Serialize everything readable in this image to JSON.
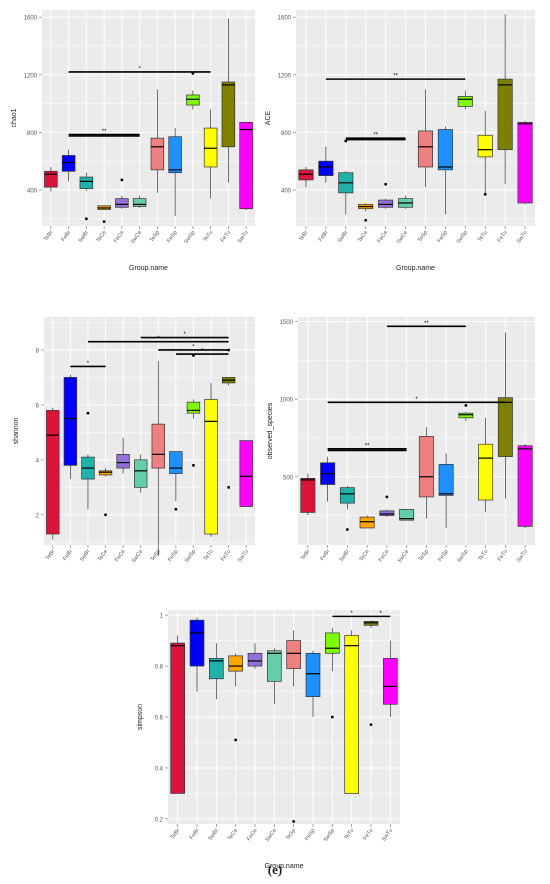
{
  "figure": {
    "caption": "(e)"
  },
  "chart_data": [
    {
      "id": "chao1",
      "type": "box",
      "ylabel": "chao1",
      "xlabel": "Group.name",
      "yticks": [
        400,
        800,
        1200,
        1600
      ],
      "ylim": [
        150,
        1650
      ],
      "categories": [
        "TeBr",
        "FeBr",
        "SwBr",
        "TeCe",
        "FeCe",
        "SwCe",
        "TeSp",
        "FeSp",
        "SwSp",
        "TeTu",
        "FeTu",
        "SwTu"
      ],
      "boxes": [
        {
          "color": "#DC143C",
          "min": 390,
          "q1": 420,
          "median": 510,
          "q3": 530,
          "max": 560,
          "outliers": []
        },
        {
          "color": "#0000FF",
          "min": 460,
          "q1": 530,
          "median": 590,
          "q3": 640,
          "max": 680,
          "outliers": []
        },
        {
          "color": "#20B2AA",
          "min": 395,
          "q1": 410,
          "median": 460,
          "q3": 490,
          "max": 520,
          "outliers": [
            200
          ]
        },
        {
          "color": "#FFA500",
          "min": 260,
          "q1": 265,
          "median": 275,
          "q3": 290,
          "max": 295,
          "outliers": [
            180
          ]
        },
        {
          "color": "#9370DB",
          "min": 270,
          "q1": 280,
          "median": 300,
          "q3": 340,
          "max": 360,
          "outliers": [
            470
          ]
        },
        {
          "color": "#66CDAA",
          "min": 275,
          "q1": 285,
          "median": 300,
          "q3": 340,
          "max": 360,
          "outliers": []
        },
        {
          "color": "#F08080",
          "min": 380,
          "q1": 540,
          "median": 700,
          "q3": 760,
          "max": 1100,
          "outliers": []
        },
        {
          "color": "#1E90FF",
          "min": 220,
          "q1": 520,
          "median": 540,
          "q3": 770,
          "max": 830,
          "outliers": []
        },
        {
          "color": "#7CFC00",
          "min": 960,
          "q1": 990,
          "median": 1030,
          "q3": 1060,
          "max": 1090,
          "outliers": [
            1210
          ]
        },
        {
          "color": "#FFFF00",
          "min": 340,
          "q1": 560,
          "median": 690,
          "q3": 830,
          "max": 960,
          "outliers": []
        },
        {
          "color": "#808000",
          "min": 450,
          "q1": 700,
          "median": 1130,
          "q3": 1150,
          "max": 1590,
          "outliers": []
        },
        {
          "color": "#FF00FF",
          "min": 260,
          "q1": 270,
          "median": 820,
          "q3": 870,
          "max": 870,
          "outliers": []
        }
      ],
      "brackets": [
        {
          "from": 1,
          "to": 9,
          "y": 1220,
          "label": "*"
        },
        {
          "from": 1,
          "to": 5,
          "y": 785,
          "label": "**"
        },
        {
          "from": 1,
          "to": 5,
          "y": 775,
          "label": ""
        }
      ]
    },
    {
      "id": "ace",
      "type": "box",
      "ylabel": "ACE",
      "xlabel": "Group.name",
      "yticks": [
        400,
        800,
        1200,
        1600
      ],
      "ylim": [
        150,
        1650
      ],
      "categories": [
        "TeBr",
        "FeBr",
        "SwBr",
        "TeCe",
        "FeCe",
        "SwCe",
        "TeSp",
        "FeSp",
        "SwSp",
        "TeTu",
        "FeTu",
        "SwTu"
      ],
      "boxes": [
        {
          "color": "#DC143C",
          "min": 420,
          "q1": 470,
          "median": 510,
          "q3": 540,
          "max": 560,
          "outliers": []
        },
        {
          "color": "#0000FF",
          "min": 450,
          "q1": 500,
          "median": 560,
          "q3": 600,
          "max": 700,
          "outliers": []
        },
        {
          "color": "#20B2AA",
          "min": 230,
          "q1": 380,
          "median": 450,
          "q3": 520,
          "max": 530,
          "outliers": [
            740
          ]
        },
        {
          "color": "#FFA500",
          "min": 250,
          "q1": 270,
          "median": 285,
          "q3": 300,
          "max": 310,
          "outliers": [
            190
          ]
        },
        {
          "color": "#9370DB",
          "min": 270,
          "q1": 280,
          "median": 300,
          "q3": 330,
          "max": 340,
          "outliers": [
            440
          ]
        },
        {
          "color": "#66CDAA",
          "min": 270,
          "q1": 280,
          "median": 310,
          "q3": 340,
          "max": 360,
          "outliers": []
        },
        {
          "color": "#F08080",
          "min": 420,
          "q1": 560,
          "median": 700,
          "q3": 810,
          "max": 1100,
          "outliers": []
        },
        {
          "color": "#1E90FF",
          "min": 230,
          "q1": 540,
          "median": 560,
          "q3": 820,
          "max": 840,
          "outliers": []
        },
        {
          "color": "#7CFC00",
          "min": 960,
          "q1": 980,
          "median": 1030,
          "q3": 1050,
          "max": 1090,
          "outliers": []
        },
        {
          "color": "#FFFF00",
          "min": 370,
          "q1": 630,
          "median": 680,
          "q3": 780,
          "max": 950,
          "outliers": [
            370
          ]
        },
        {
          "color": "#808000",
          "min": 440,
          "q1": 680,
          "median": 1130,
          "q3": 1170,
          "max": 1620,
          "outliers": []
        },
        {
          "color": "#FF00FF",
          "min": 300,
          "q1": 310,
          "median": 860,
          "q3": 870,
          "max": 880,
          "outliers": []
        }
      ],
      "brackets": [
        {
          "from": 1,
          "to": 8,
          "y": 1170,
          "label": "**"
        },
        {
          "from": 2,
          "to": 5,
          "y": 760,
          "label": "**"
        },
        {
          "from": 2,
          "to": 5,
          "y": 750,
          "label": ""
        }
      ]
    },
    {
      "id": "shannon",
      "type": "box",
      "ylabel": "shannon",
      "xlabel": "",
      "yticks": [
        2,
        4,
        6,
        8
      ],
      "ylim": [
        0.9,
        9.2
      ],
      "categories": [
        "TeBr",
        "FeBr",
        "SwBr",
        "TeCe",
        "FeCe",
        "SwCe",
        "TeSp",
        "FeSp",
        "SwSp",
        "TeTu",
        "FeTu",
        "SwTu"
      ],
      "boxes": [
        {
          "color": "#DC143C",
          "min": 1.1,
          "q1": 1.3,
          "median": 4.9,
          "q3": 5.8,
          "max": 5.9,
          "outliers": []
        },
        {
          "color": "#0000FF",
          "min": 3.3,
          "q1": 3.8,
          "median": 5.5,
          "q3": 7.0,
          "max": 7.1,
          "outliers": []
        },
        {
          "color": "#20B2AA",
          "min": 2.2,
          "q1": 3.3,
          "median": 3.7,
          "q3": 4.1,
          "max": 4.2,
          "outliers": [
            5.7
          ]
        },
        {
          "color": "#FFA500",
          "min": 3.4,
          "q1": 3.45,
          "median": 3.55,
          "q3": 3.6,
          "max": 3.7,
          "outliers": [
            2.0
          ]
        },
        {
          "color": "#9370DB",
          "min": 3.5,
          "q1": 3.7,
          "median": 3.9,
          "q3": 4.2,
          "max": 4.8,
          "outliers": []
        },
        {
          "color": "#66CDAA",
          "min": 2.8,
          "q1": 3.0,
          "median": 3.6,
          "q3": 4.0,
          "max": 4.2,
          "outliers": []
        },
        {
          "color": "#F08080",
          "min": 0.5,
          "q1": 3.7,
          "median": 4.2,
          "q3": 5.3,
          "max": 7.6,
          "outliers": []
        },
        {
          "color": "#1E90FF",
          "min": 2.5,
          "q1": 3.5,
          "median": 3.7,
          "q3": 4.3,
          "max": 4.3,
          "outliers": [
            2.2
          ]
        },
        {
          "color": "#7CFC00",
          "min": 5.5,
          "q1": 5.7,
          "median": 5.8,
          "q3": 6.1,
          "max": 6.2,
          "outliers": [
            3.8,
            7.8
          ]
        },
        {
          "color": "#FFFF00",
          "min": 1.2,
          "q1": 1.3,
          "median": 5.4,
          "q3": 6.2,
          "max": 6.8,
          "outliers": []
        },
        {
          "color": "#808000",
          "min": 6.7,
          "q1": 6.8,
          "median": 6.9,
          "q3": 7.0,
          "max": 7.0,
          "outliers": [
            3.0,
            8.0
          ]
        },
        {
          "color": "#FF00FF",
          "min": 2.3,
          "q1": 2.3,
          "median": 3.4,
          "q3": 4.7,
          "max": 4.7,
          "outliers": []
        }
      ],
      "brackets": [
        {
          "from": 1,
          "to": 3,
          "y": 7.4,
          "label": "*"
        },
        {
          "from": 2,
          "to": 10,
          "y": 8.3,
          "label": "*"
        },
        {
          "from": 5,
          "to": 10,
          "y": 8.45,
          "label": "*"
        },
        {
          "from": 6,
          "to": 10,
          "y": 8.0,
          "label": "*"
        },
        {
          "from": 7,
          "to": 10,
          "y": 7.85,
          "label": "*"
        }
      ]
    },
    {
      "id": "observed_species",
      "type": "box",
      "ylabel": "observed_species",
      "xlabel": "",
      "yticks": [
        500,
        1000,
        1500
      ],
      "ylim": [
        60,
        1530
      ],
      "categories": [
        "TeBr",
        "FeBr",
        "SwBr",
        "TeCe",
        "FeCe",
        "SwCe",
        "TeSp",
        "FeSp",
        "SwSp",
        "TeTu",
        "FeTu",
        "SwTu"
      ],
      "boxes": [
        {
          "color": "#DC143C",
          "min": 250,
          "q1": 270,
          "median": 480,
          "q3": 490,
          "max": 520,
          "outliers": []
        },
        {
          "color": "#0000FF",
          "min": 340,
          "q1": 450,
          "median": 520,
          "q3": 590,
          "max": 630,
          "outliers": []
        },
        {
          "color": "#20B2AA",
          "min": 290,
          "q1": 330,
          "median": 390,
          "q3": 430,
          "max": 440,
          "outliers": [
            160
          ]
        },
        {
          "color": "#FFA500",
          "min": 170,
          "q1": 170,
          "median": 210,
          "q3": 240,
          "max": 250,
          "outliers": []
        },
        {
          "color": "#9370DB",
          "min": 240,
          "q1": 250,
          "median": 260,
          "q3": 280,
          "max": 290,
          "outliers": [
            370
          ]
        },
        {
          "color": "#66CDAA",
          "min": 220,
          "q1": 220,
          "median": 230,
          "q3": 290,
          "max": 290,
          "outliers": []
        },
        {
          "color": "#F08080",
          "min": 230,
          "q1": 370,
          "median": 500,
          "q3": 760,
          "max": 820,
          "outliers": []
        },
        {
          "color": "#1E90FF",
          "min": 170,
          "q1": 380,
          "median": 390,
          "q3": 580,
          "max": 650,
          "outliers": []
        },
        {
          "color": "#7CFC00",
          "min": 860,
          "q1": 880,
          "median": 900,
          "q3": 910,
          "max": 920,
          "outliers": [
            960
          ]
        },
        {
          "color": "#FFFF00",
          "min": 270,
          "q1": 350,
          "median": 620,
          "q3": 710,
          "max": 880,
          "outliers": []
        },
        {
          "color": "#808000",
          "min": 360,
          "q1": 630,
          "median": 980,
          "q3": 1010,
          "max": 1430,
          "outliers": []
        },
        {
          "color": "#FF00FF",
          "min": 170,
          "q1": 180,
          "median": 680,
          "q3": 700,
          "max": 710,
          "outliers": []
        }
      ],
      "brackets": [
        {
          "from": 1,
          "to": 10,
          "y": 980,
          "label": "*"
        },
        {
          "from": 4,
          "to": 8,
          "y": 1470,
          "label": "**"
        },
        {
          "from": 1,
          "to": 5,
          "y": 680,
          "label": "**"
        },
        {
          "from": 1,
          "to": 5,
          "y": 670,
          "label": ""
        }
      ]
    },
    {
      "id": "simpson",
      "type": "box",
      "ylabel": "simpson",
      "xlabel": "Group.name",
      "yticks": [
        0.2,
        0.4,
        0.6,
        0.8,
        1.0
      ],
      "ylim": [
        0.18,
        1.02
      ],
      "categories": [
        "TeBr",
        "FeBr",
        "SwBr",
        "TeCe",
        "FeCe",
        "SwCe",
        "TeSp",
        "FeSp",
        "SwSp",
        "TeTu",
        "FeTu",
        "SwTu"
      ],
      "boxes": [
        {
          "color": "#DC143C",
          "min": 0.3,
          "q1": 0.3,
          "median": 0.88,
          "q3": 0.89,
          "max": 0.92,
          "outliers": []
        },
        {
          "color": "#0000FF",
          "min": 0.7,
          "q1": 0.8,
          "median": 0.93,
          "q3": 0.98,
          "max": 0.99,
          "outliers": []
        },
        {
          "color": "#20B2AA",
          "min": 0.67,
          "q1": 0.75,
          "median": 0.82,
          "q3": 0.83,
          "max": 0.89,
          "outliers": []
        },
        {
          "color": "#FFA500",
          "min": 0.72,
          "q1": 0.78,
          "median": 0.8,
          "q3": 0.84,
          "max": 0.85,
          "outliers": [
            0.51
          ]
        },
        {
          "color": "#9370DB",
          "min": 0.79,
          "q1": 0.8,
          "median": 0.82,
          "q3": 0.85,
          "max": 0.89,
          "outliers": []
        },
        {
          "color": "#66CDAA",
          "min": 0.65,
          "q1": 0.74,
          "median": 0.85,
          "q3": 0.86,
          "max": 0.87,
          "outliers": []
        },
        {
          "color": "#F08080",
          "min": 0.72,
          "q1": 0.79,
          "median": 0.85,
          "q3": 0.9,
          "max": 0.94,
          "outliers": [
            0.19
          ]
        },
        {
          "color": "#1E90FF",
          "min": 0.6,
          "q1": 0.68,
          "median": 0.77,
          "q3": 0.85,
          "max": 0.86,
          "outliers": []
        },
        {
          "color": "#7CFC00",
          "min": 0.78,
          "q1": 0.85,
          "median": 0.87,
          "q3": 0.93,
          "max": 0.95,
          "outliers": [
            0.6
          ]
        },
        {
          "color": "#FFFF00",
          "min": 0.3,
          "q1": 0.3,
          "median": 0.88,
          "q3": 0.92,
          "max": 0.94,
          "outliers": []
        },
        {
          "color": "#808000",
          "min": 0.95,
          "q1": 0.96,
          "median": 0.97,
          "q3": 0.975,
          "max": 0.98,
          "outliers": [
            0.57
          ]
        },
        {
          "color": "#FF00FF",
          "min": 0.6,
          "q1": 0.65,
          "median": 0.72,
          "q3": 0.83,
          "max": 0.9,
          "outliers": []
        }
      ],
      "brackets": [
        {
          "from": 8,
          "to": 10,
          "y": 0.995,
          "label": "*"
        },
        {
          "from": 10,
          "to": 11,
          "y": 0.995,
          "label": "*"
        }
      ]
    }
  ]
}
